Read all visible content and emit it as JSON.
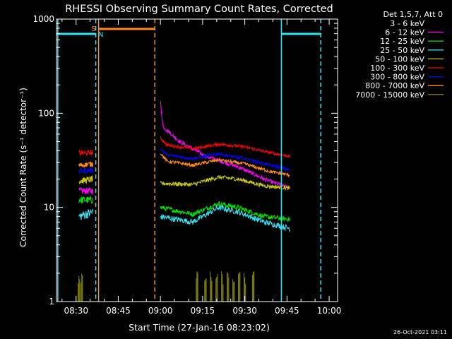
{
  "chart_data": {
    "type": "line",
    "title": "RHESSI Observing Summary Count Rates, Corrected",
    "xlabel": "Start Time (27-Jan-16 08:23:02)",
    "ylabel": "Corrected Count Rate (s⁻¹ detector⁻¹)",
    "yscale": "log",
    "ylim": [
      1,
      1000
    ],
    "xlim": [
      "08:23:02",
      "10:03:00"
    ],
    "x_ticks": [
      "08:30",
      "08:45",
      "09:00",
      "09:15",
      "09:30",
      "09:45",
      "10:00"
    ],
    "y_ticks": [
      "1",
      "10",
      "100",
      "1000"
    ],
    "legend_title": "Det 1,5,7, Att 0",
    "legend_position": "right",
    "timestamp": "26-Oct-2021 03:11",
    "grid": false,
    "segment_a": [
      "08:31:00",
      "08:36:00"
    ],
    "segment_b": [
      "09:00:00",
      "09:46:00"
    ],
    "flags": [
      {
        "label": "S",
        "color": "#ff8c1a",
        "start": "08:38:00",
        "end": "08:58:00"
      },
      {
        "label": "N",
        "color": "#33e0f0",
        "start": "08:38:00",
        "end": "08:38:00"
      }
    ],
    "night_bars": [
      {
        "color": "#33e0f0",
        "start": "08:23:02",
        "end": "08:37:00"
      },
      {
        "color": "#33e0f0",
        "start": "09:43:00",
        "end": "09:57:00"
      }
    ],
    "vlines": [
      {
        "time": "08:23:30",
        "color": "#33e0f0",
        "style": "solid"
      },
      {
        "time": "08:37:00",
        "color": "#33e0f0",
        "style": "dashed"
      },
      {
        "time": "08:38:00",
        "color": "#ff8c1a",
        "style": "solid"
      },
      {
        "time": "08:58:00",
        "color": "#ff8c1a",
        "style": "dashed"
      },
      {
        "time": "09:43:00",
        "color": "#33e0f0",
        "style": "solid"
      },
      {
        "time": "09:57:00",
        "color": "#33e0f0",
        "style": "dashed"
      }
    ],
    "series": [
      {
        "name": "3 - 6 keV",
        "color": "#000000",
        "noise": 0.04,
        "a": [
          [
            0,
            52
          ],
          [
            1,
            52
          ]
        ],
        "b": [
          [
            0,
            125
          ],
          [
            0.02,
            80
          ],
          [
            0.2,
            62
          ],
          [
            0.45,
            57
          ],
          [
            0.7,
            56
          ],
          [
            1,
            52
          ]
        ]
      },
      {
        "name": "6 - 12 keV",
        "color": "#ff00ff",
        "noise": 0.05,
        "a": [
          [
            0,
            15
          ],
          [
            1,
            15
          ]
        ],
        "b": [
          [
            0,
            130
          ],
          [
            0.02,
            72
          ],
          [
            0.15,
            50
          ],
          [
            0.35,
            35
          ],
          [
            0.6,
            27
          ],
          [
            0.8,
            20
          ],
          [
            1,
            16
          ]
        ]
      },
      {
        "name": "12 - 25 keV",
        "color": "#00dd00",
        "noise": 0.06,
        "a": [
          [
            0,
            12
          ],
          [
            1,
            12
          ]
        ],
        "b": [
          [
            0,
            10
          ],
          [
            0.25,
            8.5
          ],
          [
            0.45,
            11
          ],
          [
            0.6,
            10
          ],
          [
            0.8,
            8
          ],
          [
            1,
            7.5
          ]
        ]
      },
      {
        "name": "25 - 50 keV",
        "color": "#33e0f0",
        "noise": 0.07,
        "a": [
          [
            0,
            8
          ],
          [
            1,
            9
          ]
        ],
        "b": [
          [
            0,
            8
          ],
          [
            0.25,
            7
          ],
          [
            0.45,
            10
          ],
          [
            0.6,
            9
          ],
          [
            0.8,
            7
          ],
          [
            1,
            6
          ]
        ]
      },
      {
        "name": "50 - 100 keV",
        "color": "#cccc00",
        "noise": 0.05,
        "a": [
          [
            0,
            19
          ],
          [
            1,
            20
          ]
        ],
        "b": [
          [
            0,
            18
          ],
          [
            0.25,
            17.5
          ],
          [
            0.45,
            21
          ],
          [
            0.6,
            20
          ],
          [
            0.8,
            17
          ],
          [
            1,
            16
          ]
        ]
      },
      {
        "name": "100 - 300 keV",
        "color": "#ff0000",
        "noise": 0.04,
        "a": [
          [
            0,
            38
          ],
          [
            1,
            38
          ]
        ],
        "b": [
          [
            0,
            55
          ],
          [
            0.05,
            46
          ],
          [
            0.25,
            42
          ],
          [
            0.45,
            47
          ],
          [
            0.65,
            44
          ],
          [
            0.85,
            38
          ],
          [
            1,
            35
          ]
        ]
      },
      {
        "name": "300 - 800 keV",
        "color": "#0000ff",
        "noise": 0.04,
        "a": [
          [
            0,
            24
          ],
          [
            1,
            25
          ]
        ],
        "b": [
          [
            0,
            42
          ],
          [
            0.05,
            36
          ],
          [
            0.25,
            33
          ],
          [
            0.45,
            37
          ],
          [
            0.65,
            33
          ],
          [
            0.85,
            28
          ],
          [
            1,
            25
          ]
        ]
      },
      {
        "name": "800 - 7000 keV",
        "color": "#ff8c1a",
        "noise": 0.04,
        "a": [
          [
            0,
            28
          ],
          [
            1,
            29
          ]
        ],
        "b": [
          [
            0,
            38
          ],
          [
            0.05,
            31
          ],
          [
            0.25,
            28
          ],
          [
            0.45,
            32
          ],
          [
            0.65,
            29
          ],
          [
            0.85,
            24
          ],
          [
            1,
            22
          ]
        ]
      },
      {
        "name": "7000 - 15000 keV",
        "color": "#808000",
        "noise": 0,
        "bars": [
          "08:31:00",
          "08:32:00",
          "09:13:00",
          "09:16:00",
          "09:18:00",
          "09:20:00",
          "09:22:00",
          "09:24:00",
          "09:26:00",
          "09:28:00",
          "09:30:00",
          "09:33:00"
        ]
      }
    ]
  }
}
